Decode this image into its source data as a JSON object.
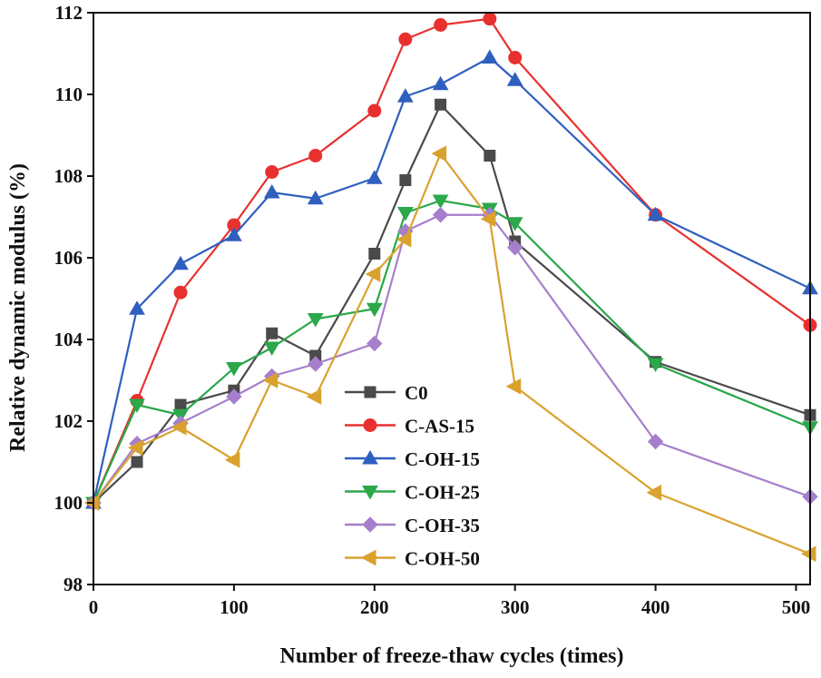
{
  "chart_data": {
    "type": "line",
    "title": "",
    "xlabel": "Number of freeze-thaw cycles (times)",
    "ylabel": "Relative dynamic modulus (%)",
    "xlim": [
      0,
      510
    ],
    "ylim": [
      98,
      112
    ],
    "xticks": [
      0,
      100,
      200,
      300,
      400,
      500
    ],
    "yticks": [
      98,
      100,
      102,
      104,
      106,
      108,
      110,
      112
    ],
    "legend_position": "bottom-center",
    "series": [
      {
        "name": "C0",
        "color": "#4a4a4a",
        "marker": "square",
        "points": [
          [
            0,
            100
          ],
          [
            31,
            101
          ],
          [
            62,
            102.4
          ],
          [
            100,
            102.75
          ],
          [
            127,
            104.15
          ],
          [
            158,
            103.6
          ],
          [
            200,
            106.1
          ],
          [
            222,
            107.9
          ],
          [
            247,
            109.75
          ],
          [
            282,
            108.5
          ],
          [
            300,
            106.4
          ],
          [
            400,
            103.45
          ],
          [
            510,
            102.15
          ]
        ]
      },
      {
        "name": "C-AS-15",
        "color": "#e8312f",
        "marker": "circle",
        "points": [
          [
            0,
            100
          ],
          [
            31,
            102.5
          ],
          [
            62,
            105.15
          ],
          [
            100,
            106.8
          ],
          [
            127,
            108.1
          ],
          [
            158,
            108.5
          ],
          [
            200,
            109.6
          ],
          [
            222,
            111.35
          ],
          [
            247,
            111.7
          ],
          [
            282,
            111.85
          ],
          [
            300,
            110.9
          ],
          [
            400,
            107.05
          ],
          [
            510,
            104.35
          ]
        ]
      },
      {
        "name": "C-OH-15",
        "color": "#2f5fbf",
        "marker": "triangle-up",
        "points": [
          [
            0,
            100
          ],
          [
            31,
            104.75
          ],
          [
            62,
            105.85
          ],
          [
            100,
            106.55
          ],
          [
            127,
            107.6
          ],
          [
            158,
            107.45
          ],
          [
            200,
            107.95
          ],
          [
            222,
            109.95
          ],
          [
            247,
            110.25
          ],
          [
            282,
            110.9
          ],
          [
            300,
            110.35
          ],
          [
            400,
            107.05
          ],
          [
            510,
            105.25
          ]
        ]
      },
      {
        "name": "C-OH-25",
        "color": "#2aa84a",
        "marker": "triangle-down",
        "points": [
          [
            0,
            100
          ],
          [
            31,
            102.4
          ],
          [
            62,
            102.15
          ],
          [
            100,
            103.3
          ],
          [
            127,
            103.8
          ],
          [
            158,
            104.5
          ],
          [
            200,
            104.75
          ],
          [
            222,
            107.1
          ],
          [
            247,
            107.4
          ],
          [
            282,
            107.2
          ],
          [
            300,
            106.85
          ],
          [
            400,
            103.4
          ],
          [
            510,
            101.85
          ]
        ]
      },
      {
        "name": "C-OH-35",
        "color": "#a57fcc",
        "marker": "diamond",
        "points": [
          [
            0,
            100
          ],
          [
            31,
            101.45
          ],
          [
            62,
            101.95
          ],
          [
            100,
            102.6
          ],
          [
            127,
            103.1
          ],
          [
            158,
            103.4
          ],
          [
            200,
            103.9
          ],
          [
            222,
            106.65
          ],
          [
            247,
            107.05
          ],
          [
            282,
            107.05
          ],
          [
            300,
            106.25
          ],
          [
            400,
            101.5
          ],
          [
            510,
            100.15
          ]
        ]
      },
      {
        "name": "C-OH-50",
        "color": "#d9a22e",
        "marker": "triangle-left",
        "points": [
          [
            0,
            100
          ],
          [
            31,
            101.35
          ],
          [
            62,
            101.85
          ],
          [
            100,
            101.05
          ],
          [
            127,
            103
          ],
          [
            158,
            102.6
          ],
          [
            200,
            105.6
          ],
          [
            222,
            106.45
          ],
          [
            247,
            108.55
          ],
          [
            282,
            106.95
          ],
          [
            300,
            102.85
          ],
          [
            400,
            100.25
          ],
          [
            510,
            98.75
          ]
        ]
      }
    ]
  }
}
